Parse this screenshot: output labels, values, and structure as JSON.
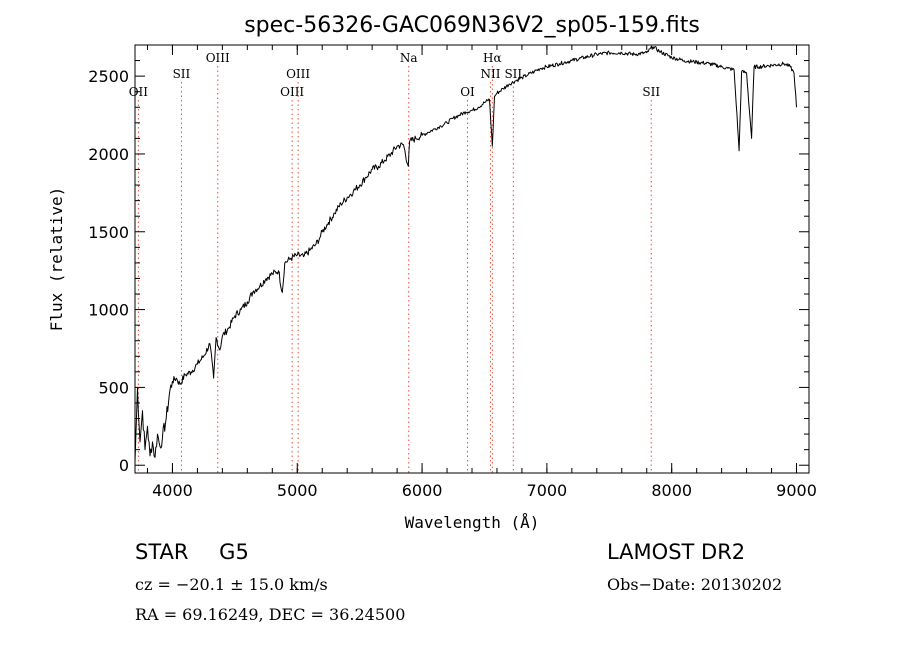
{
  "chart_data": {
    "type": "line",
    "title": "spec-56326-GAC069N36V2_sp05-159.fits",
    "xlabel": "Wavelength (Å)",
    "ylabel": "Flux (relative)",
    "xlim": [
      3700,
      9100
    ],
    "ylim": [
      -50,
      2700
    ],
    "x_ticks": [
      4000,
      5000,
      6000,
      7000,
      8000,
      9000
    ],
    "y_ticks": [
      0,
      500,
      1000,
      1500,
      2000,
      2500
    ],
    "grid": false,
    "series": [
      {
        "name": "flux",
        "x": [
          3700,
          3720,
          3740,
          3760,
          3780,
          3800,
          3820,
          3840,
          3860,
          3880,
          3900,
          3920,
          3950,
          3980,
          4000,
          4030,
          4060,
          4100,
          4150,
          4200,
          4250,
          4300,
          4330,
          4350,
          4380,
          4400,
          4450,
          4500,
          4550,
          4600,
          4650,
          4700,
          4750,
          4800,
          4850,
          4880,
          4900,
          4950,
          5000,
          5050,
          5100,
          5150,
          5180,
          5200,
          5250,
          5300,
          5350,
          5400,
          5450,
          5500,
          5550,
          5600,
          5650,
          5700,
          5750,
          5800,
          5850,
          5890,
          5900,
          5950,
          6000,
          6050,
          6100,
          6150,
          6200,
          6250,
          6300,
          6350,
          6400,
          6450,
          6500,
          6540,
          6563,
          6580,
          6600,
          6650,
          6700,
          6750,
          6800,
          6850,
          6900,
          6950,
          7000,
          7100,
          7200,
          7300,
          7400,
          7500,
          7600,
          7700,
          7800,
          7850,
          7900,
          8000,
          8100,
          8200,
          8300,
          8400,
          8450,
          8500,
          8540,
          8560,
          8600,
          8640,
          8660,
          8700,
          8800,
          8900,
          8950,
          8980,
          9000
        ],
        "y": [
          20,
          500,
          150,
          350,
          100,
          250,
          60,
          150,
          50,
          200,
          120,
          180,
          300,
          480,
          540,
          560,
          520,
          580,
          600,
          650,
          700,
          780,
          560,
          820,
          740,
          830,
          880,
          960,
          1000,
          1050,
          1120,
          1150,
          1200,
          1230,
          1250,
          1110,
          1300,
          1330,
          1350,
          1340,
          1380,
          1420,
          1460,
          1500,
          1560,
          1620,
          1680,
          1720,
          1760,
          1800,
          1850,
          1900,
          1920,
          1960,
          2000,
          2050,
          2060,
          1920,
          2080,
          2100,
          2120,
          2140,
          2160,
          2180,
          2200,
          2230,
          2250,
          2270,
          2280,
          2300,
          2330,
          2350,
          2050,
          2370,
          2390,
          2420,
          2450,
          2470,
          2490,
          2510,
          2530,
          2550,
          2560,
          2580,
          2600,
          2620,
          2640,
          2650,
          2650,
          2640,
          2650,
          2690,
          2660,
          2620,
          2600,
          2590,
          2580,
          2560,
          2550,
          2540,
          2020,
          2530,
          2520,
          2100,
          2560,
          2560,
          2570,
          2580,
          2560,
          2520,
          2300
        ]
      }
    ],
    "line_markers": [
      {
        "name": "OII",
        "x": 3727,
        "row": 2
      },
      {
        "name": "SII",
        "x": 4072,
        "row": 1
      },
      {
        "name": "OIII",
        "x": 4363,
        "row": 0
      },
      {
        "name": "OIII",
        "x": 4959,
        "row": 2
      },
      {
        "name": "OIII",
        "x": 5007,
        "row": 1
      },
      {
        "name": "Na",
        "x": 5893,
        "row": 0
      },
      {
        "name": "OI",
        "x": 6364,
        "row": 2
      },
      {
        "name": "Hα",
        "x": 6563,
        "row": 0
      },
      {
        "name": "NII",
        "x": 6548,
        "row": 1
      },
      {
        "name": "SII",
        "x": 6731,
        "row": 1
      },
      {
        "name": "SII",
        "x": 7836,
        "row": 2
      }
    ],
    "marker_color": "#e8503a",
    "line_color": "#000000"
  },
  "info": {
    "object_type": "STAR",
    "subclass": "G5",
    "survey": "LAMOST DR2",
    "cz": "cz = −20.1 ± 15.0 km/s",
    "obs_date": "Obs−Date: 20130202",
    "coords": "RA =  69.16249, DEC =  36.24500"
  }
}
